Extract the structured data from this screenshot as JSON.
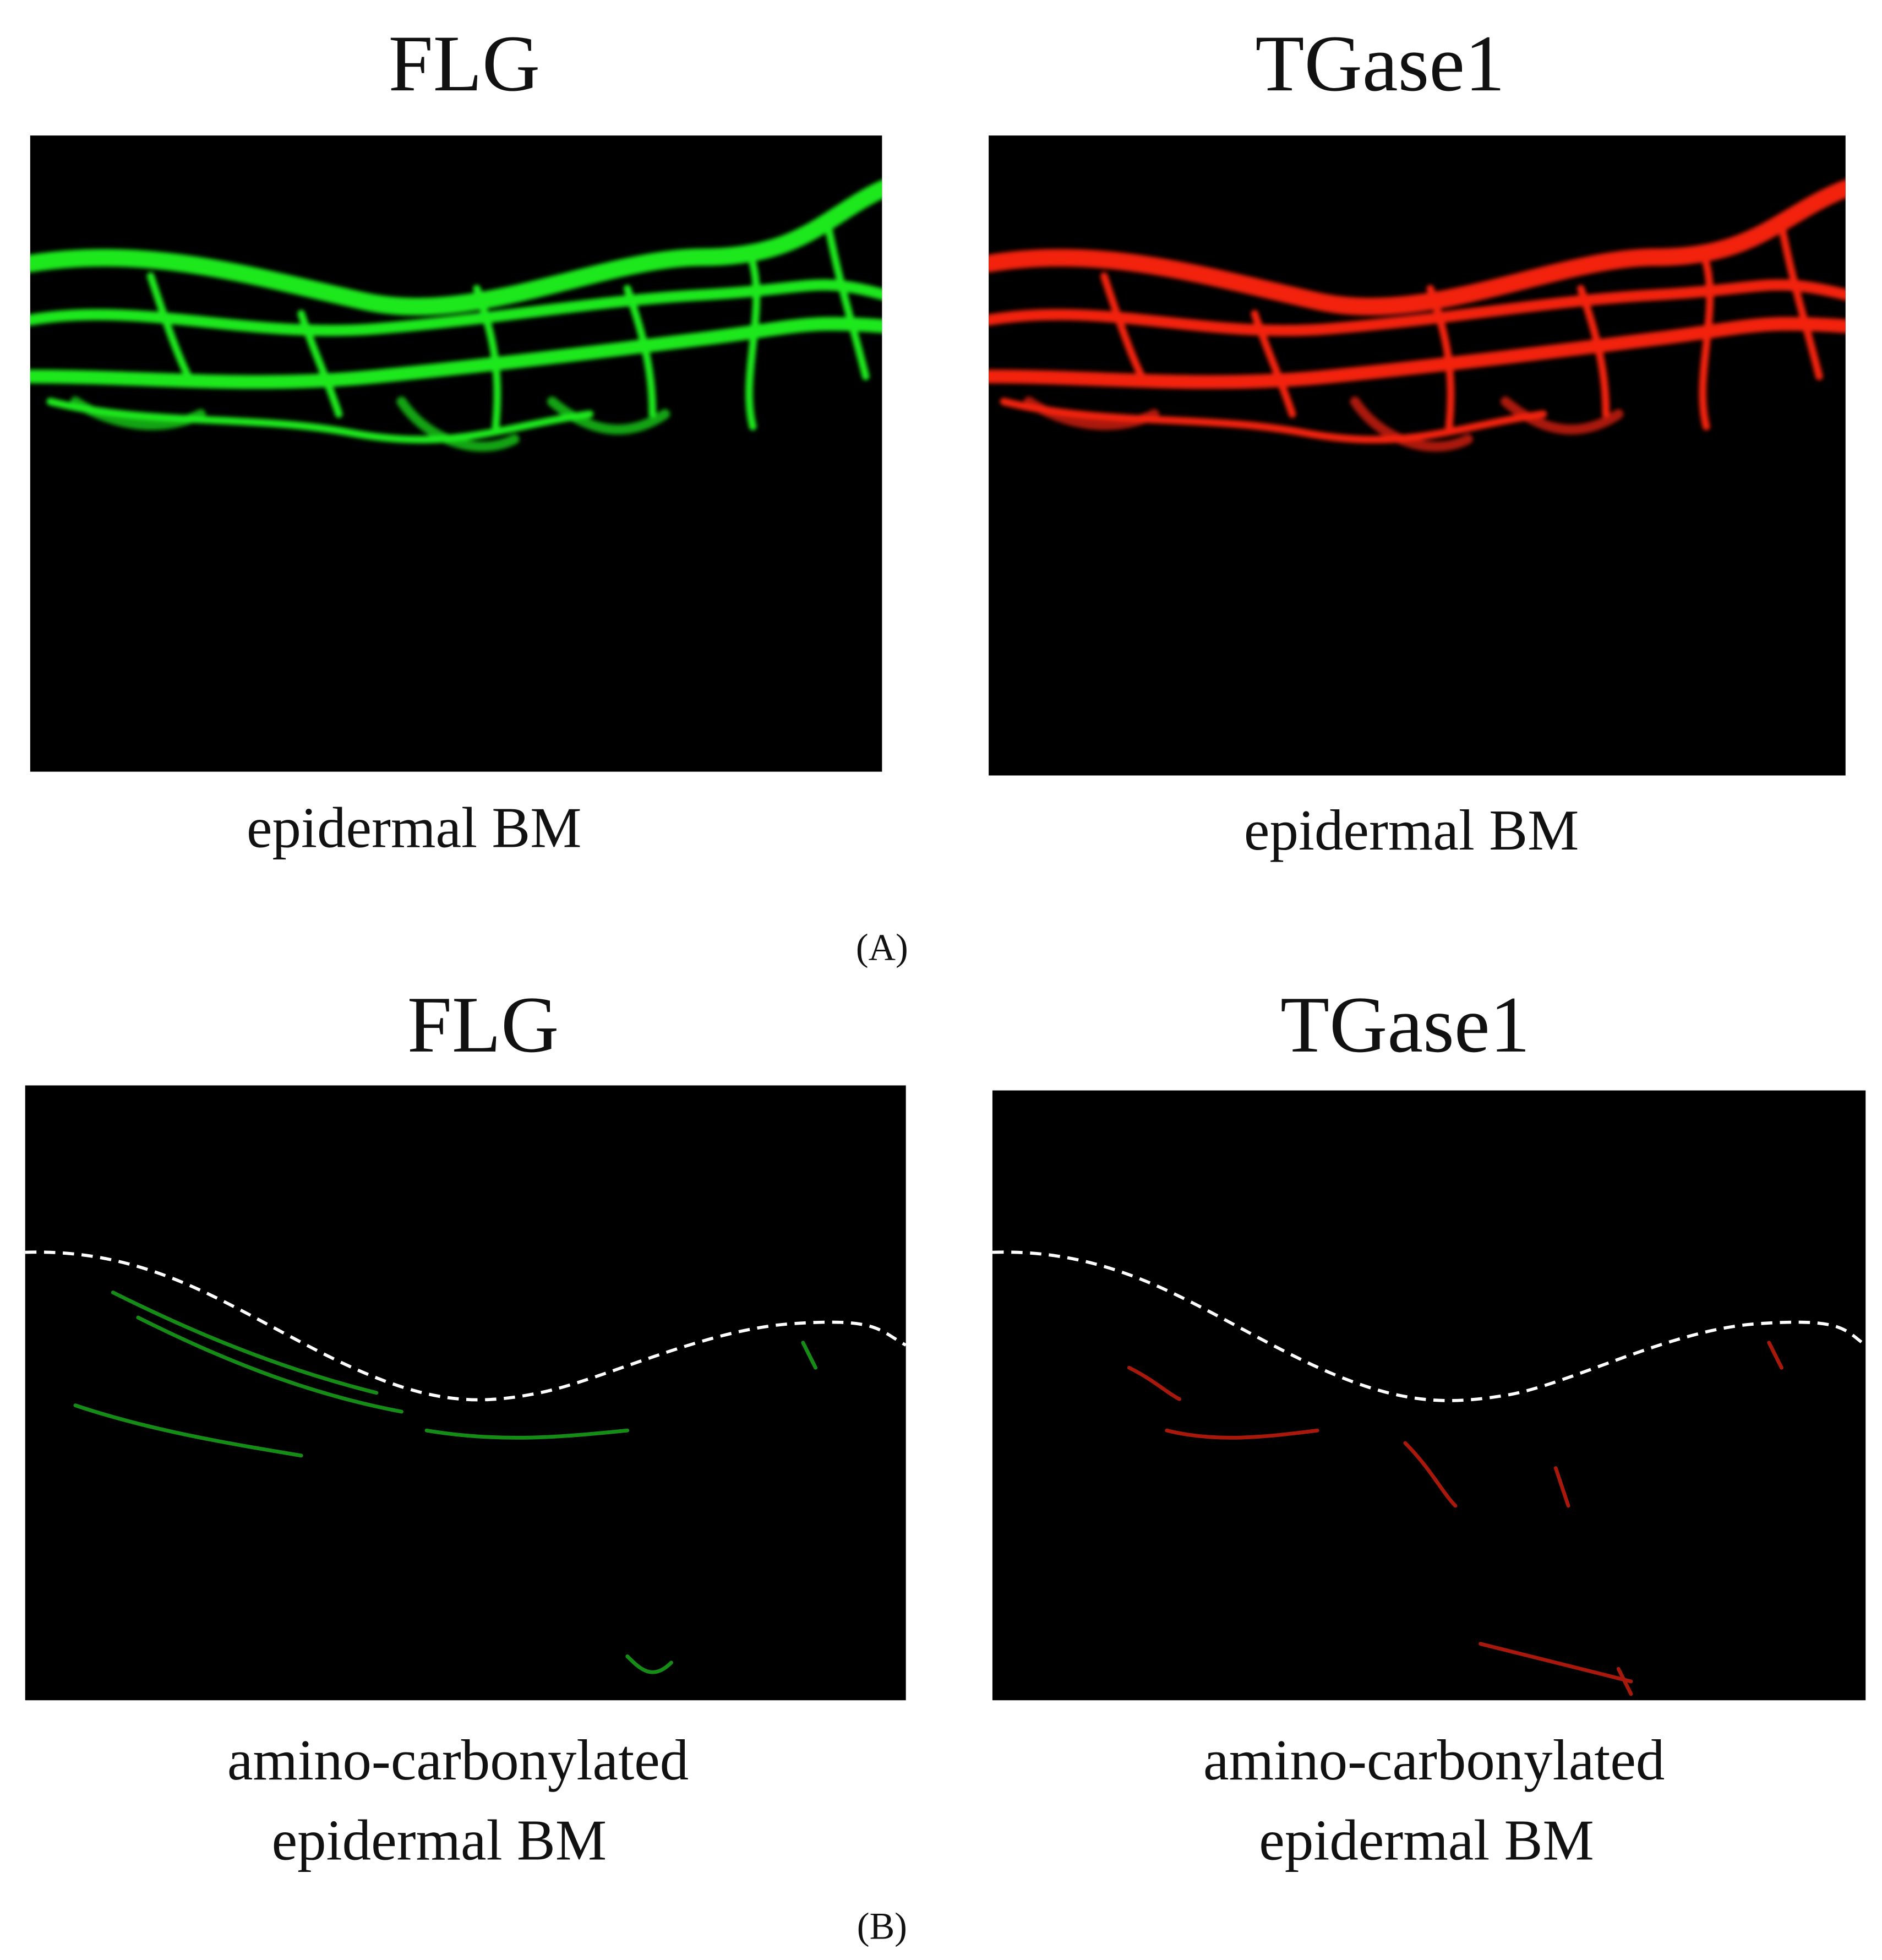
{
  "panels": [
    {
      "label": "(A)",
      "images": [
        {
          "title": "FLG",
          "caption": [
            "epidermal BM"
          ]
        },
        {
          "title": "TGase1",
          "caption": [
            "epidermal BM"
          ]
        }
      ]
    },
    {
      "label": "(B)",
      "images": [
        {
          "title": "FLG",
          "caption": [
            "amino-carbonylated",
            "epidermal BM"
          ]
        },
        {
          "title": "TGase1",
          "caption": [
            "amino-carbonylated",
            "epidermal BM"
          ]
        }
      ]
    }
  ]
}
